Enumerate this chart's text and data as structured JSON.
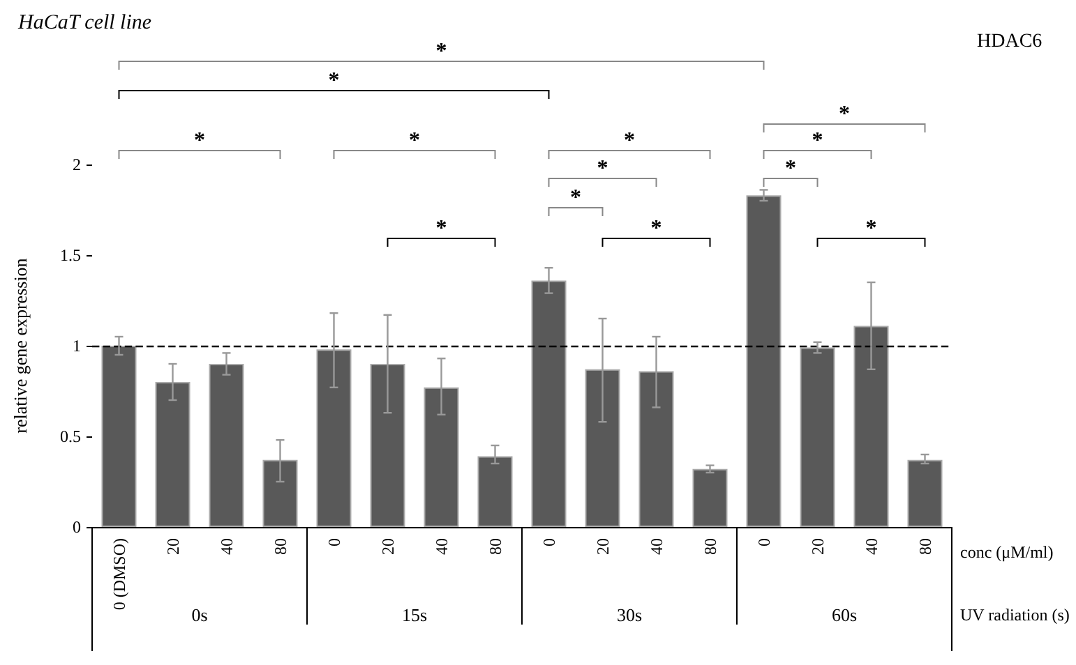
{
  "chart_data": {
    "type": "bar",
    "title": "HaCaT cell line",
    "xlabel": "conc (μM/ml)",
    "ylabel": "relative gene expression",
    "categories": [
      "0 (DMSO)",
      "20",
      "40",
      "80",
      "0",
      "20",
      "40",
      "80",
      "0",
      "20",
      "40",
      "80",
      "0",
      "20",
      "40",
      "80"
    ],
    "values": [
      1.0,
      0.8,
      0.9,
      0.37,
      0.98,
      0.9,
      0.77,
      0.39,
      1.36,
      0.87,
      0.86,
      0.32,
      1.83,
      0.99,
      1.11,
      0.37
    ],
    "errors": [
      [
        0.95,
        1.05
      ],
      [
        0.7,
        0.9
      ],
      [
        0.84,
        0.96
      ],
      [
        0.25,
        0.48
      ],
      [
        0.77,
        1.18
      ],
      [
        0.63,
        1.17
      ],
      [
        0.62,
        0.93
      ],
      [
        0.35,
        0.45
      ],
      [
        1.29,
        1.43
      ],
      [
        0.58,
        1.15
      ],
      [
        0.66,
        1.05
      ],
      [
        0.3,
        0.34
      ],
      [
        1.8,
        1.86
      ],
      [
        0.96,
        1.02
      ],
      [
        0.87,
        1.35
      ],
      [
        0.35,
        0.4
      ]
    ],
    "color": "#595959",
    "ylim": [
      0,
      2
    ],
    "yticks": [
      0,
      0.5,
      1,
      1.5,
      2
    ],
    "grid": false,
    "ref_lines": [
      {
        "axis": "y",
        "value": 1,
        "color": "#000000",
        "line_style": "dashed"
      }
    ],
    "annotations": [
      "HDAC6",
      "UV radiation (s)",
      "0s",
      "15s",
      "30s",
      "60s",
      "*",
      "*",
      "*",
      "*",
      "*",
      "*",
      "*",
      "*",
      "*",
      "*",
      "*",
      "*",
      "*"
    ]
  }
}
